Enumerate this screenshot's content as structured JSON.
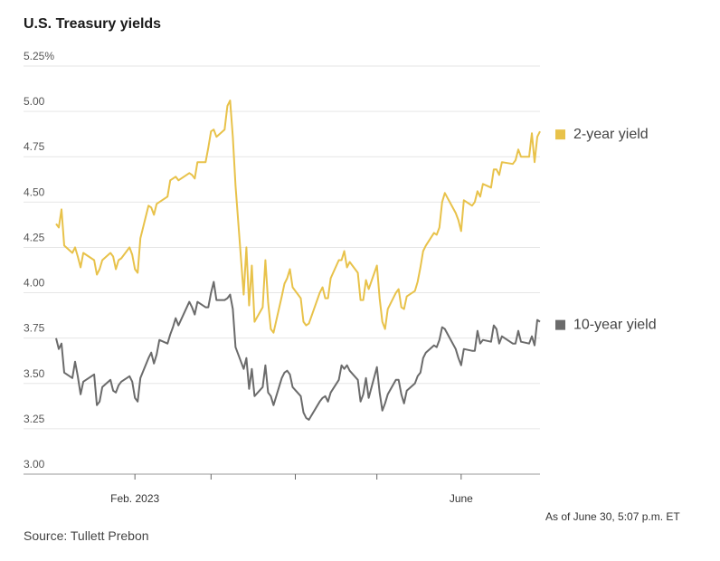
{
  "title": "U.S. Treasury yields",
  "as_of": "As of June 30, 5:07 p.m. ET",
  "source": "Source: Tullett Prebon",
  "colors": {
    "two_year": "#e8c24a",
    "ten_year": "#6b6b6b",
    "grid": "#e6e6e6",
    "axis": "#999999"
  },
  "chart_data": {
    "type": "line",
    "title": "U.S. Treasury yields",
    "xlabel": "",
    "ylabel": "",
    "ylim": [
      3.0,
      5.25
    ],
    "yticks": [
      {
        "value": 5.25,
        "label": "5.25%"
      },
      {
        "value": 5.0,
        "label": "5.00"
      },
      {
        "value": 4.75,
        "label": "4.75"
      },
      {
        "value": 4.5,
        "label": "4.50"
      },
      {
        "value": 4.25,
        "label": "4.25"
      },
      {
        "value": 4.0,
        "label": "4.00"
      },
      {
        "value": 3.75,
        "label": "3.75"
      },
      {
        "value": 3.5,
        "label": "3.50"
      },
      {
        "value": 3.25,
        "label": "3.25"
      },
      {
        "value": 3.0,
        "label": "3.00"
      }
    ],
    "xdomain": [
      "2023-01-03",
      "2023-06-30"
    ],
    "xticks": [
      {
        "date": "2023-02-01",
        "label": "Feb. 2023"
      },
      {
        "date": "2023-03-01",
        "label": ""
      },
      {
        "date": "2023-04-01",
        "label": ""
      },
      {
        "date": "2023-05-01",
        "label": ""
      },
      {
        "date": "2023-06-01",
        "label": "June"
      }
    ],
    "grid": true,
    "legend": "right",
    "series": [
      {
        "name": "2-year yield",
        "color": "#e8c24a",
        "points": [
          [
            "2023-01-03",
            4.38
          ],
          [
            "2023-01-04",
            4.36
          ],
          [
            "2023-01-05",
            4.46
          ],
          [
            "2023-01-06",
            4.26
          ],
          [
            "2023-01-09",
            4.22
          ],
          [
            "2023-01-10",
            4.25
          ],
          [
            "2023-01-11",
            4.2
          ],
          [
            "2023-01-12",
            4.14
          ],
          [
            "2023-01-13",
            4.22
          ],
          [
            "2023-01-17",
            4.18
          ],
          [
            "2023-01-18",
            4.1
          ],
          [
            "2023-01-19",
            4.13
          ],
          [
            "2023-01-20",
            4.18
          ],
          [
            "2023-01-23",
            4.22
          ],
          [
            "2023-01-24",
            4.2
          ],
          [
            "2023-01-25",
            4.13
          ],
          [
            "2023-01-26",
            4.18
          ],
          [
            "2023-01-27",
            4.19
          ],
          [
            "2023-01-30",
            4.25
          ],
          [
            "2023-01-31",
            4.21
          ],
          [
            "2023-02-01",
            4.13
          ],
          [
            "2023-02-02",
            4.11
          ],
          [
            "2023-02-03",
            4.3
          ],
          [
            "2023-02-06",
            4.48
          ],
          [
            "2023-02-07",
            4.47
          ],
          [
            "2023-02-08",
            4.43
          ],
          [
            "2023-02-09",
            4.49
          ],
          [
            "2023-02-10",
            4.5
          ],
          [
            "2023-02-13",
            4.53
          ],
          [
            "2023-02-14",
            4.62
          ],
          [
            "2023-02-15",
            4.63
          ],
          [
            "2023-02-16",
            4.64
          ],
          [
            "2023-02-17",
            4.62
          ],
          [
            "2023-02-21",
            4.66
          ],
          [
            "2023-02-22",
            4.65
          ],
          [
            "2023-02-23",
            4.63
          ],
          [
            "2023-02-24",
            4.72
          ],
          [
            "2023-02-27",
            4.72
          ],
          [
            "2023-02-28",
            4.8
          ],
          [
            "2023-03-01",
            4.89
          ],
          [
            "2023-03-02",
            4.9
          ],
          [
            "2023-03-03",
            4.86
          ],
          [
            "2023-03-06",
            4.9
          ],
          [
            "2023-03-07",
            5.03
          ],
          [
            "2023-03-08",
            5.06
          ],
          [
            "2023-03-09",
            4.86
          ],
          [
            "2023-03-10",
            4.59
          ],
          [
            "2023-03-13",
            3.99
          ],
          [
            "2023-03-14",
            4.25
          ],
          [
            "2023-03-15",
            3.93
          ],
          [
            "2023-03-16",
            4.15
          ],
          [
            "2023-03-17",
            3.84
          ],
          [
            "2023-03-20",
            3.92
          ],
          [
            "2023-03-21",
            4.18
          ],
          [
            "2023-03-22",
            3.95
          ],
          [
            "2023-03-23",
            3.8
          ],
          [
            "2023-03-24",
            3.78
          ],
          [
            "2023-03-27",
            3.98
          ],
          [
            "2023-03-28",
            4.05
          ],
          [
            "2023-03-29",
            4.08
          ],
          [
            "2023-03-30",
            4.13
          ],
          [
            "2023-03-31",
            4.03
          ],
          [
            "2023-04-03",
            3.97
          ],
          [
            "2023-04-04",
            3.84
          ],
          [
            "2023-04-05",
            3.82
          ],
          [
            "2023-04-06",
            3.83
          ],
          [
            "2023-04-10",
            4.0
          ],
          [
            "2023-04-11",
            4.03
          ],
          [
            "2023-04-12",
            3.97
          ],
          [
            "2023-04-13",
            3.97
          ],
          [
            "2023-04-14",
            4.08
          ],
          [
            "2023-04-17",
            4.18
          ],
          [
            "2023-04-18",
            4.18
          ],
          [
            "2023-04-19",
            4.23
          ],
          [
            "2023-04-20",
            4.14
          ],
          [
            "2023-04-21",
            4.17
          ],
          [
            "2023-04-24",
            4.11
          ],
          [
            "2023-04-25",
            3.96
          ],
          [
            "2023-04-26",
            3.96
          ],
          [
            "2023-04-27",
            4.07
          ],
          [
            "2023-04-28",
            4.02
          ],
          [
            "2023-05-01",
            4.15
          ],
          [
            "2023-05-02",
            3.97
          ],
          [
            "2023-05-03",
            3.84
          ],
          [
            "2023-05-04",
            3.8
          ],
          [
            "2023-05-05",
            3.91
          ],
          [
            "2023-05-08",
            4.0
          ],
          [
            "2023-05-09",
            4.02
          ],
          [
            "2023-05-10",
            3.92
          ],
          [
            "2023-05-11",
            3.91
          ],
          [
            "2023-05-12",
            3.98
          ],
          [
            "2023-05-15",
            4.01
          ],
          [
            "2023-05-16",
            4.06
          ],
          [
            "2023-05-17",
            4.14
          ],
          [
            "2023-05-18",
            4.23
          ],
          [
            "2023-05-19",
            4.26
          ],
          [
            "2023-05-22",
            4.33
          ],
          [
            "2023-05-23",
            4.32
          ],
          [
            "2023-05-24",
            4.36
          ],
          [
            "2023-05-25",
            4.5
          ],
          [
            "2023-05-26",
            4.55
          ],
          [
            "2023-05-30",
            4.44
          ],
          [
            "2023-05-31",
            4.4
          ],
          [
            "2023-06-01",
            4.34
          ],
          [
            "2023-06-02",
            4.51
          ],
          [
            "2023-06-05",
            4.48
          ],
          [
            "2023-06-06",
            4.5
          ],
          [
            "2023-06-07",
            4.56
          ],
          [
            "2023-06-08",
            4.53
          ],
          [
            "2023-06-09",
            4.6
          ],
          [
            "2023-06-12",
            4.58
          ],
          [
            "2023-06-13",
            4.68
          ],
          [
            "2023-06-14",
            4.68
          ],
          [
            "2023-06-15",
            4.65
          ],
          [
            "2023-06-16",
            4.72
          ],
          [
            "2023-06-20",
            4.71
          ],
          [
            "2023-06-21",
            4.73
          ],
          [
            "2023-06-22",
            4.79
          ],
          [
            "2023-06-23",
            4.75
          ],
          [
            "2023-06-26",
            4.75
          ],
          [
            "2023-06-27",
            4.88
          ],
          [
            "2023-06-28",
            4.72
          ],
          [
            "2023-06-29",
            4.86
          ],
          [
            "2023-06-30",
            4.89
          ]
        ]
      },
      {
        "name": "10-year yield",
        "color": "#6b6b6b",
        "points": [
          [
            "2023-01-03",
            3.75
          ],
          [
            "2023-01-04",
            3.69
          ],
          [
            "2023-01-05",
            3.72
          ],
          [
            "2023-01-06",
            3.56
          ],
          [
            "2023-01-09",
            3.53
          ],
          [
            "2023-01-10",
            3.62
          ],
          [
            "2023-01-11",
            3.54
          ],
          [
            "2023-01-12",
            3.44
          ],
          [
            "2023-01-13",
            3.51
          ],
          [
            "2023-01-17",
            3.55
          ],
          [
            "2023-01-18",
            3.38
          ],
          [
            "2023-01-19",
            3.4
          ],
          [
            "2023-01-20",
            3.48
          ],
          [
            "2023-01-23",
            3.52
          ],
          [
            "2023-01-24",
            3.46
          ],
          [
            "2023-01-25",
            3.45
          ],
          [
            "2023-01-26",
            3.49
          ],
          [
            "2023-01-27",
            3.51
          ],
          [
            "2023-01-30",
            3.54
          ],
          [
            "2023-01-31",
            3.51
          ],
          [
            "2023-02-01",
            3.42
          ],
          [
            "2023-02-02",
            3.4
          ],
          [
            "2023-02-03",
            3.53
          ],
          [
            "2023-02-06",
            3.64
          ],
          [
            "2023-02-07",
            3.67
          ],
          [
            "2023-02-08",
            3.61
          ],
          [
            "2023-02-09",
            3.66
          ],
          [
            "2023-02-10",
            3.74
          ],
          [
            "2023-02-13",
            3.72
          ],
          [
            "2023-02-14",
            3.77
          ],
          [
            "2023-02-15",
            3.81
          ],
          [
            "2023-02-16",
            3.86
          ],
          [
            "2023-02-17",
            3.82
          ],
          [
            "2023-02-21",
            3.95
          ],
          [
            "2023-02-22",
            3.92
          ],
          [
            "2023-02-23",
            3.88
          ],
          [
            "2023-02-24",
            3.95
          ],
          [
            "2023-02-27",
            3.92
          ],
          [
            "2023-02-28",
            3.92
          ],
          [
            "2023-03-01",
            4.0
          ],
          [
            "2023-03-02",
            4.06
          ],
          [
            "2023-03-03",
            3.96
          ],
          [
            "2023-03-06",
            3.96
          ],
          [
            "2023-03-07",
            3.97
          ],
          [
            "2023-03-08",
            3.99
          ],
          [
            "2023-03-09",
            3.91
          ],
          [
            "2023-03-10",
            3.7
          ],
          [
            "2023-03-13",
            3.58
          ],
          [
            "2023-03-14",
            3.64
          ],
          [
            "2023-03-15",
            3.47
          ],
          [
            "2023-03-16",
            3.58
          ],
          [
            "2023-03-17",
            3.43
          ],
          [
            "2023-03-20",
            3.48
          ],
          [
            "2023-03-21",
            3.6
          ],
          [
            "2023-03-22",
            3.45
          ],
          [
            "2023-03-23",
            3.43
          ],
          [
            "2023-03-24",
            3.38
          ],
          [
            "2023-03-27",
            3.53
          ],
          [
            "2023-03-28",
            3.56
          ],
          [
            "2023-03-29",
            3.57
          ],
          [
            "2023-03-30",
            3.55
          ],
          [
            "2023-03-31",
            3.48
          ],
          [
            "2023-04-03",
            3.43
          ],
          [
            "2023-04-04",
            3.34
          ],
          [
            "2023-04-05",
            3.31
          ],
          [
            "2023-04-06",
            3.3
          ],
          [
            "2023-04-10",
            3.4
          ],
          [
            "2023-04-11",
            3.42
          ],
          [
            "2023-04-12",
            3.43
          ],
          [
            "2023-04-13",
            3.4
          ],
          [
            "2023-04-14",
            3.45
          ],
          [
            "2023-04-17",
            3.52
          ],
          [
            "2023-04-18",
            3.6
          ],
          [
            "2023-04-19",
            3.58
          ],
          [
            "2023-04-20",
            3.6
          ],
          [
            "2023-04-21",
            3.57
          ],
          [
            "2023-04-24",
            3.52
          ],
          [
            "2023-04-25",
            3.4
          ],
          [
            "2023-04-26",
            3.44
          ],
          [
            "2023-04-27",
            3.53
          ],
          [
            "2023-04-28",
            3.42
          ],
          [
            "2023-05-01",
            3.59
          ],
          [
            "2023-05-02",
            3.45
          ],
          [
            "2023-05-03",
            3.35
          ],
          [
            "2023-05-04",
            3.39
          ],
          [
            "2023-05-05",
            3.44
          ],
          [
            "2023-05-08",
            3.52
          ],
          [
            "2023-05-09",
            3.52
          ],
          [
            "2023-05-10",
            3.44
          ],
          [
            "2023-05-11",
            3.39
          ],
          [
            "2023-05-12",
            3.46
          ],
          [
            "2023-05-15",
            3.5
          ],
          [
            "2023-05-16",
            3.54
          ],
          [
            "2023-05-17",
            3.56
          ],
          [
            "2023-05-18",
            3.64
          ],
          [
            "2023-05-19",
            3.67
          ],
          [
            "2023-05-22",
            3.71
          ],
          [
            "2023-05-23",
            3.7
          ],
          [
            "2023-05-24",
            3.74
          ],
          [
            "2023-05-25",
            3.81
          ],
          [
            "2023-05-26",
            3.8
          ],
          [
            "2023-05-30",
            3.69
          ],
          [
            "2023-05-31",
            3.64
          ],
          [
            "2023-06-01",
            3.6
          ],
          [
            "2023-06-02",
            3.69
          ],
          [
            "2023-06-05",
            3.68
          ],
          [
            "2023-06-06",
            3.68
          ],
          [
            "2023-06-07",
            3.79
          ],
          [
            "2023-06-08",
            3.72
          ],
          [
            "2023-06-09",
            3.74
          ],
          [
            "2023-06-12",
            3.73
          ],
          [
            "2023-06-13",
            3.82
          ],
          [
            "2023-06-14",
            3.8
          ],
          [
            "2023-06-15",
            3.72
          ],
          [
            "2023-06-16",
            3.76
          ],
          [
            "2023-06-20",
            3.72
          ],
          [
            "2023-06-21",
            3.72
          ],
          [
            "2023-06-22",
            3.79
          ],
          [
            "2023-06-23",
            3.73
          ],
          [
            "2023-06-26",
            3.72
          ],
          [
            "2023-06-27",
            3.76
          ],
          [
            "2023-06-28",
            3.71
          ],
          [
            "2023-06-29",
            3.85
          ],
          [
            "2023-06-30",
            3.84
          ]
        ]
      }
    ]
  }
}
